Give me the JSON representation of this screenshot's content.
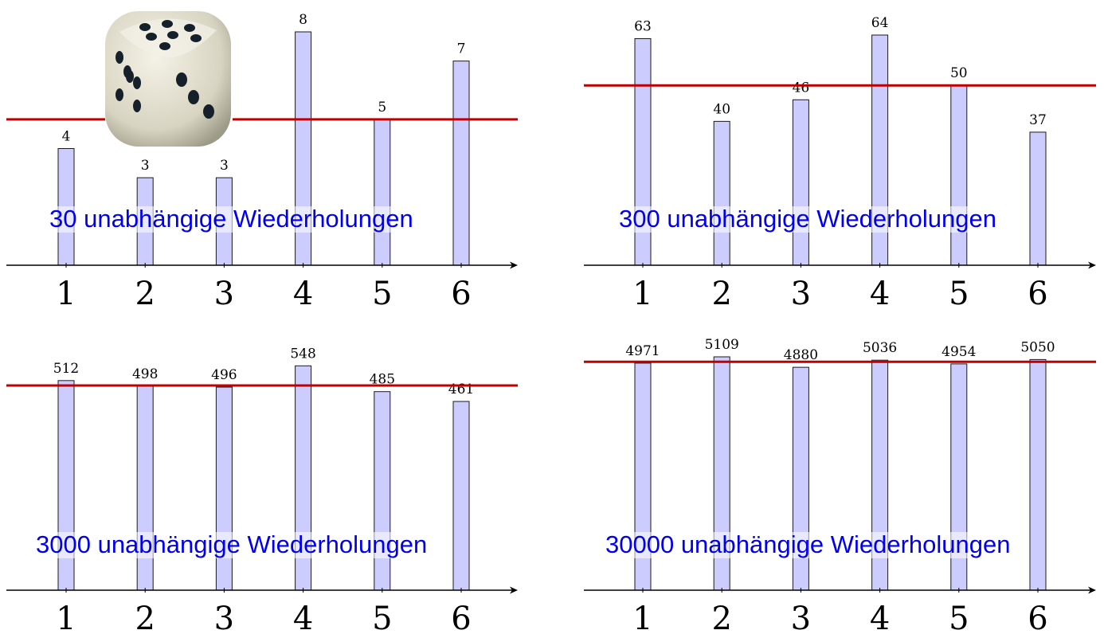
{
  "colors": {
    "bar_fill": "#ccccff",
    "bar_stroke": "#1a1a1a",
    "mean_line": "#c00000",
    "caption_text": "#0000ee",
    "axis": "#000000"
  },
  "dice_image": {
    "icon": "die-photo-icon"
  },
  "chart_data": [
    {
      "type": "bar",
      "categories": [
        "1",
        "2",
        "3",
        "4",
        "5",
        "6"
      ],
      "values": [
        4,
        3,
        3,
        8,
        5,
        7
      ],
      "reference_line": 5,
      "ylim": [
        0,
        8
      ],
      "caption": "30 unabhängige Wiederholungen"
    },
    {
      "type": "bar",
      "categories": [
        "1",
        "2",
        "3",
        "4",
        "5",
        "6"
      ],
      "values": [
        63,
        40,
        46,
        64,
        50,
        37
      ],
      "reference_line": 50,
      "ylim": [
        0,
        64
      ],
      "caption": "300 unabhängige Wiederholungen"
    },
    {
      "type": "bar",
      "categories": [
        "1",
        "2",
        "3",
        "4",
        "5",
        "6"
      ],
      "values": [
        512,
        498,
        496,
        548,
        485,
        461
      ],
      "reference_line": 500,
      "ylim": [
        0,
        570
      ],
      "caption": "3000 unabhängige Wiederholungen"
    },
    {
      "type": "bar",
      "categories": [
        "1",
        "2",
        "3",
        "4",
        "5",
        "6"
      ],
      "values": [
        4971,
        5109,
        4880,
        5036,
        4954,
        5050
      ],
      "reference_line": 5000,
      "ylim": [
        0,
        5109
      ],
      "caption": "30000 unabhängige Wiederholungen"
    }
  ]
}
